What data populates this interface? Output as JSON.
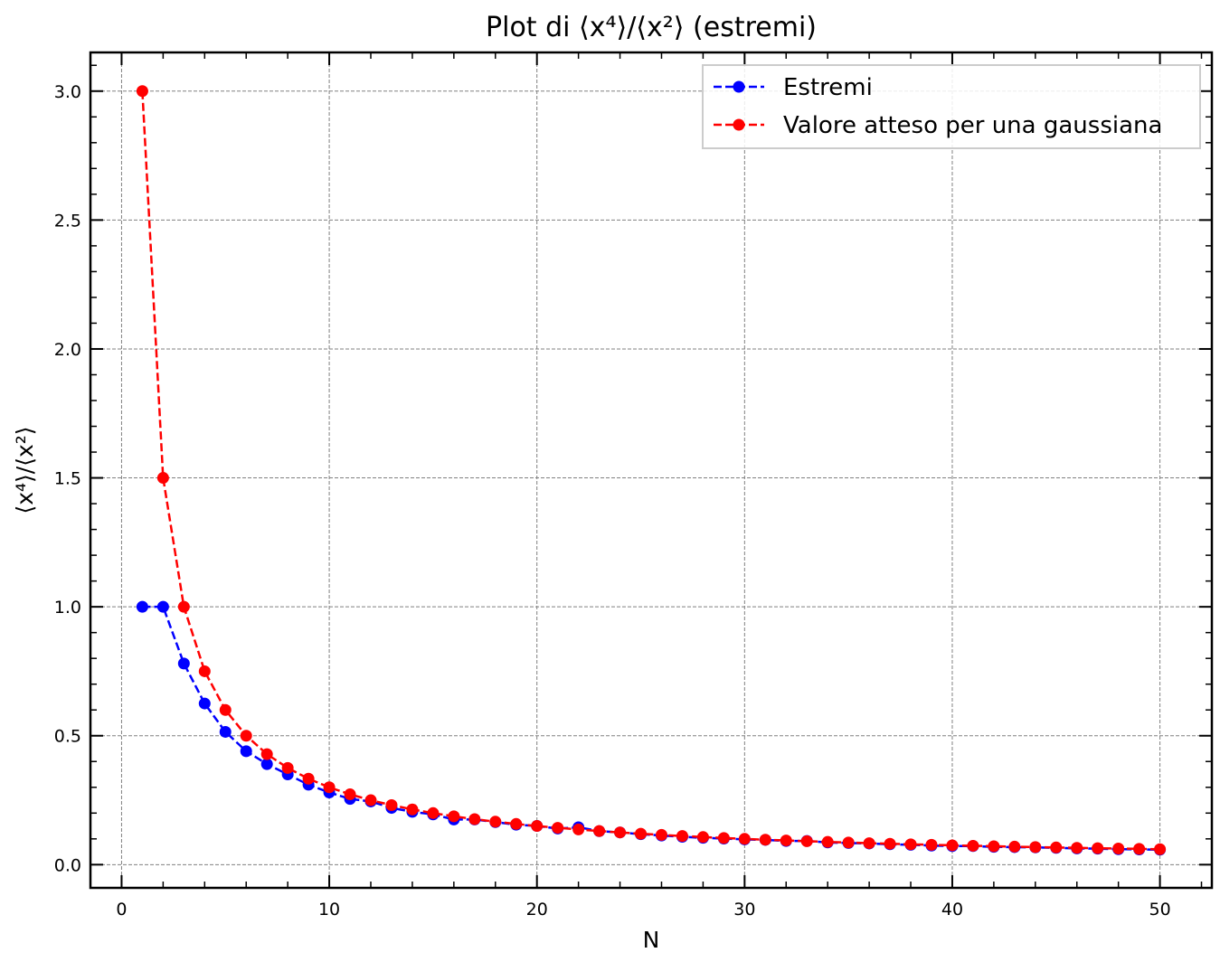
{
  "chart_data": {
    "type": "line",
    "title": "Plot di ⟨x⁴⟩/⟨x²⟩ (estremi)",
    "xlabel": "N",
    "ylabel": "⟨x⁴⟩/⟨x²⟩",
    "xlim": [
      -1.5,
      52.5
    ],
    "ylim": [
      -0.09,
      3.15
    ],
    "xticks": [
      0,
      10,
      20,
      30,
      40,
      50
    ],
    "yticks": [
      0.0,
      0.5,
      1.0,
      1.5,
      2.0,
      2.5,
      3.0
    ],
    "grid": true,
    "legend_position": "top-right",
    "series": [
      {
        "name": "Estremi",
        "color": "#0000ff",
        "linestyle": "dashed",
        "marker": "circle",
        "x": [
          1,
          2,
          3,
          4,
          5,
          6,
          7,
          8,
          9,
          10,
          11,
          12,
          13,
          14,
          15,
          16,
          17,
          18,
          19,
          20,
          21,
          22,
          23,
          24,
          25,
          26,
          27,
          28,
          29,
          30,
          31,
          32,
          33,
          34,
          35,
          36,
          37,
          38,
          39,
          40,
          41,
          42,
          43,
          44,
          45,
          46,
          47,
          48,
          49,
          50
        ],
        "values": [
          1.0,
          1.0,
          0.78,
          0.625,
          0.515,
          0.44,
          0.39,
          0.35,
          0.31,
          0.28,
          0.255,
          0.245,
          0.22,
          0.205,
          0.195,
          0.175,
          0.175,
          0.165,
          0.155,
          0.15,
          0.14,
          0.145,
          0.13,
          0.125,
          0.118,
          0.113,
          0.108,
          0.104,
          0.101,
          0.098,
          0.096,
          0.092,
          0.092,
          0.086,
          0.084,
          0.082,
          0.079,
          0.077,
          0.074,
          0.072,
          0.072,
          0.069,
          0.068,
          0.067,
          0.065,
          0.063,
          0.062,
          0.06,
          0.059,
          0.058
        ]
      },
      {
        "name": "Valore atteso per una gaussiana",
        "color": "#ff0000",
        "linestyle": "dashed",
        "marker": "circle",
        "x": [
          1,
          2,
          3,
          4,
          5,
          6,
          7,
          8,
          9,
          10,
          11,
          12,
          13,
          14,
          15,
          16,
          17,
          18,
          19,
          20,
          21,
          22,
          23,
          24,
          25,
          26,
          27,
          28,
          29,
          30,
          31,
          32,
          33,
          34,
          35,
          36,
          37,
          38,
          39,
          40,
          41,
          42,
          43,
          44,
          45,
          46,
          47,
          48,
          49,
          50
        ],
        "values": [
          3.0,
          1.5,
          1.0,
          0.75,
          0.6,
          0.5,
          0.4286,
          0.375,
          0.3333,
          0.3,
          0.2727,
          0.25,
          0.2308,
          0.2143,
          0.2,
          0.1875,
          0.1765,
          0.1667,
          0.1579,
          0.15,
          0.1429,
          0.1364,
          0.1304,
          0.125,
          0.12,
          0.1154,
          0.1111,
          0.1071,
          0.1034,
          0.1,
          0.0968,
          0.0938,
          0.0909,
          0.0882,
          0.0857,
          0.0833,
          0.0811,
          0.0789,
          0.0769,
          0.075,
          0.0732,
          0.0714,
          0.0698,
          0.0682,
          0.0667,
          0.0652,
          0.0638,
          0.0625,
          0.0612,
          0.06
        ]
      }
    ]
  }
}
